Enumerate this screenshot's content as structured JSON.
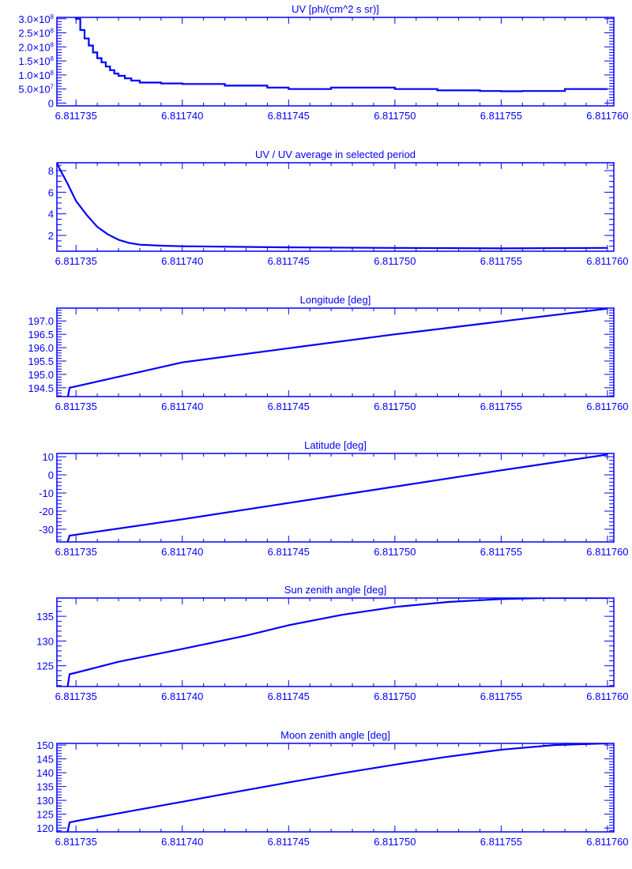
{
  "color": "#0000ff",
  "chart_data": [
    {
      "type": "line",
      "step": true,
      "title": "UV [ph/(cm^2 s sr)]",
      "xlim": [
        6.8117341,
        6.8117603
      ],
      "xticks": [
        6.811735,
        6.81174,
        6.811745,
        6.81175,
        6.811755,
        6.81176
      ],
      "xtick_labels": [
        "6.811735",
        "6.811740",
        "6.811745",
        "6.811750",
        "6.811755",
        "6.811760"
      ],
      "ylim": [
        -10000000,
        305000000
      ],
      "yticks": [
        0,
        50000000,
        100000000,
        150000000,
        200000000,
        250000000,
        300000000
      ],
      "ytick_labels": [
        [
          "0",
          ""
        ],
        [
          "5.0×10",
          "7"
        ],
        [
          "1.0×10",
          "8"
        ],
        [
          "1.5×10",
          "8"
        ],
        [
          "2.0×10",
          "8"
        ],
        [
          "2.5×10",
          "8"
        ],
        [
          "3.0×10",
          "8"
        ]
      ],
      "yminor": 5,
      "x": [
        6.8117349,
        6.811735,
        6.8117352,
        6.8117354,
        6.8117356,
        6.8117358,
        6.811736,
        6.8117362,
        6.8117364,
        6.8117366,
        6.8117368,
        6.811737,
        6.8117373,
        6.8117376,
        6.811738,
        6.811739,
        6.81174,
        6.811742,
        6.811744,
        6.811745,
        6.811746,
        6.811747,
        6.811748,
        6.81175,
        6.811752,
        6.811754,
        6.811755,
        6.811756,
        6.811758,
        6.81176
      ],
      "y": [
        320000000,
        300000000,
        260000000,
        230000000,
        205000000,
        180000000,
        160000000,
        145000000,
        130000000,
        117000000,
        105000000,
        97000000,
        88000000,
        80000000,
        73000000,
        70000000,
        68000000,
        62000000,
        55000000,
        50000000,
        50000000,
        55000000,
        55000000,
        50000000,
        45000000,
        43000000,
        42000000,
        43000000,
        50000000,
        50000000
      ]
    },
    {
      "type": "line",
      "title": "UV / UV average in selected period",
      "xlim": [
        6.8117341,
        6.8117603
      ],
      "xticks": [
        6.811735,
        6.81174,
        6.811745,
        6.81175,
        6.811755,
        6.81176
      ],
      "xtick_labels": [
        "6.811735",
        "6.811740",
        "6.811745",
        "6.811750",
        "6.811755",
        "6.811760"
      ],
      "ylim": [
        0.54,
        8.73
      ],
      "yticks": [
        2,
        4,
        6,
        8
      ],
      "ytick_labels": [
        [
          "2",
          ""
        ],
        [
          "4",
          ""
        ],
        [
          "6",
          ""
        ],
        [
          "8",
          ""
        ]
      ],
      "yminor": 4,
      "x": [
        6.8117341,
        6.8117343,
        6.8117346,
        6.811735,
        6.8117355,
        6.811736,
        6.8117365,
        6.811737,
        6.8117375,
        6.811738,
        6.811739,
        6.81174,
        6.811745,
        6.81175,
        6.811755,
        6.81176
      ],
      "y": [
        8.7,
        7.9,
        6.8,
        5.2,
        3.9,
        2.8,
        2.1,
        1.6,
        1.3,
        1.15,
        1.05,
        1.0,
        0.9,
        0.85,
        0.8,
        0.85
      ]
    },
    {
      "type": "line",
      "title": "Longitude [deg]",
      "xlim": [
        6.8117341,
        6.8117603
      ],
      "xticks": [
        6.811735,
        6.81174,
        6.811745,
        6.81175,
        6.811755,
        6.81176
      ],
      "xtick_labels": [
        "6.811735",
        "6.811740",
        "6.811745",
        "6.811750",
        "6.811755",
        "6.811760"
      ],
      "ylim": [
        194.17,
        197.48
      ],
      "yticks": [
        194.5,
        195.0,
        195.5,
        196.0,
        196.5,
        197.0
      ],
      "ytick_labels": [
        [
          "194.5",
          ""
        ],
        [
          "195.0",
          ""
        ],
        [
          "195.5",
          ""
        ],
        [
          "196.0",
          ""
        ],
        [
          "196.5",
          ""
        ],
        [
          "197.0",
          ""
        ]
      ],
      "yminor": 5,
      "x": [
        6.8117346,
        6.8117347,
        6.811735,
        6.81174,
        6.811745,
        6.81175,
        6.811755,
        6.81176
      ],
      "y": [
        194.1,
        194.5,
        194.55,
        195.45,
        195.98,
        196.5,
        196.98,
        197.46
      ]
    },
    {
      "type": "line",
      "title": "Latitude [deg]",
      "xlim": [
        6.8117341,
        6.8117603
      ],
      "xticks": [
        6.811735,
        6.81174,
        6.811745,
        6.81175,
        6.811755,
        6.81176
      ],
      "xtick_labels": [
        "6.811735",
        "6.811740",
        "6.811745",
        "6.811750",
        "6.811755",
        "6.811760"
      ],
      "ylim": [
        -37,
        11.8
      ],
      "yticks": [
        -30,
        -20,
        -10,
        0,
        10
      ],
      "ytick_labels": [
        [
          "-30",
          ""
        ],
        [
          "-20",
          ""
        ],
        [
          "-10",
          ""
        ],
        [
          "0",
          ""
        ],
        [
          "10",
          ""
        ]
      ],
      "yminor": 5,
      "x": [
        6.8117346,
        6.8117347,
        6.811735,
        6.81174,
        6.811745,
        6.81175,
        6.811755,
        6.81176
      ],
      "y": [
        -37,
        -33.5,
        -33,
        -24.5,
        -15.5,
        -6.5,
        2.5,
        11.2
      ]
    },
    {
      "type": "line",
      "title": "Sun zenith angle [deg]",
      "xlim": [
        6.8117341,
        6.8117603
      ],
      "xticks": [
        6.811735,
        6.81174,
        6.811745,
        6.81175,
        6.811755,
        6.81176
      ],
      "xtick_labels": [
        "6.811735",
        "6.811740",
        "6.811745",
        "6.811750",
        "6.811755",
        "6.811760"
      ],
      "ylim": [
        120.8,
        138.7
      ],
      "yticks": [
        125,
        130,
        135
      ],
      "ytick_labels": [
        [
          "125",
          ""
        ],
        [
          "130",
          ""
        ],
        [
          "135",
          ""
        ]
      ],
      "yminor": 5,
      "x": [
        6.8117346,
        6.8117347,
        6.811735,
        6.811737,
        6.81174,
        6.811743,
        6.811745,
        6.8117475,
        6.81175,
        6.8117525,
        6.811755,
        6.811757,
        6.81176
      ],
      "y": [
        120.7,
        123.3,
        123.6,
        125.8,
        128.4,
        131.1,
        133.2,
        135.3,
        136.9,
        137.9,
        138.5,
        138.7,
        138.7
      ]
    },
    {
      "type": "line",
      "title": "Moon zenith angle [deg]",
      "xlim": [
        6.8117341,
        6.8117603
      ],
      "xticks": [
        6.811735,
        6.81174,
        6.811745,
        6.81175,
        6.811755,
        6.81176
      ],
      "xtick_labels": [
        "6.811735",
        "6.811740",
        "6.811745",
        "6.811750",
        "6.811755",
        "6.811760"
      ],
      "ylim": [
        118.6,
        150.6
      ],
      "yticks": [
        120,
        125,
        130,
        135,
        140,
        145,
        150
      ],
      "ytick_labels": [
        [
          "120",
          ""
        ],
        [
          "125",
          ""
        ],
        [
          "130",
          ""
        ],
        [
          "135",
          ""
        ],
        [
          "140",
          ""
        ],
        [
          "145",
          ""
        ],
        [
          "150",
          ""
        ]
      ],
      "yminor": 5,
      "x": [
        6.8117346,
        6.8117347,
        6.811735,
        6.8117375,
        6.81174,
        6.8117425,
        6.811745,
        6.8117475,
        6.81175,
        6.8117525,
        6.811755,
        6.8117575,
        6.81176
      ],
      "y": [
        118.5,
        122,
        122.5,
        126,
        129.5,
        133,
        136.5,
        139.8,
        142.9,
        145.8,
        148.3,
        150.0,
        150.6
      ]
    }
  ]
}
